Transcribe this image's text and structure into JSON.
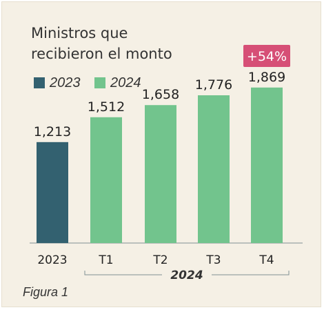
{
  "title_lines": [
    "Ministros que",
    "recibieron el monto"
  ],
  "legend": [
    {
      "label": "2023",
      "color": "#336170"
    },
    {
      "label": "2024",
      "color": "#72c48d"
    }
  ],
  "figure_label": "Figura 1",
  "chart_data": {
    "type": "bar",
    "title": "Ministros que recibieron el monto",
    "categories": [
      "2023",
      "T1",
      "T2",
      "T3",
      "T4"
    ],
    "values": [
      1213,
      1512,
      1658,
      1776,
      1869
    ],
    "value_labels": [
      "1,213",
      "1,512",
      "1,658",
      "1,776",
      "1,869"
    ],
    "bar_colors": [
      "#336170",
      "#72c48d",
      "#72c48d",
      "#72c48d",
      "#72c48d"
    ],
    "group_label": "2024",
    "group_categories": [
      "T1",
      "T2",
      "T3",
      "T4"
    ],
    "annotation": {
      "label": "+54%",
      "category": "T4",
      "color": "#d64f76"
    },
    "ylim": [
      0,
      2200
    ],
    "grid": false,
    "legend_position": "top-left"
  }
}
